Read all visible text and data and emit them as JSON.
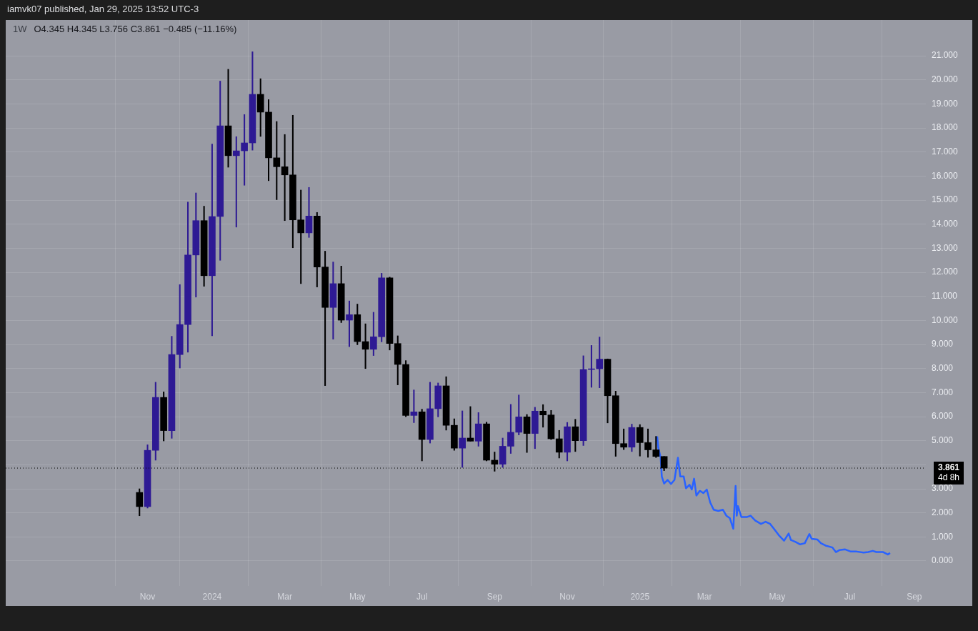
{
  "chart_data": {
    "type": "candlestick",
    "title": "1W",
    "subtitle": "O4.345 H4.345 L3.756 C3.861 −0.485 (−11.16%)",
    "annotations": [
      "iamvk07 published, Jan 29, 2025 13:52 UTC-3"
    ],
    "x": [
      "2023-10-30",
      "2023-11-06",
      "2023-11-13",
      "2023-11-20",
      "2023-11-27",
      "2023-12-04",
      "2023-12-11",
      "2023-12-18",
      "2023-12-25",
      "2024-01-01",
      "2024-01-08",
      "2024-01-15",
      "2024-01-22",
      "2024-01-29",
      "2024-02-05",
      "2024-02-12",
      "2024-02-19",
      "2024-02-26",
      "2024-03-04",
      "2024-03-11",
      "2024-03-18",
      "2024-03-25",
      "2024-04-01",
      "2024-04-08",
      "2024-04-15",
      "2024-04-22",
      "2024-04-29",
      "2024-05-06",
      "2024-05-13",
      "2024-05-20",
      "2024-05-27",
      "2024-06-03",
      "2024-06-10",
      "2024-06-17",
      "2024-06-24",
      "2024-07-01",
      "2024-07-08",
      "2024-07-15",
      "2024-07-22",
      "2024-07-29",
      "2024-08-05",
      "2024-08-12",
      "2024-08-19",
      "2024-08-26",
      "2024-09-02",
      "2024-09-09",
      "2024-09-16",
      "2024-09-23",
      "2024-09-30",
      "2024-10-07",
      "2024-10-14",
      "2024-10-21",
      "2024-10-28",
      "2024-11-04",
      "2024-11-11",
      "2024-11-18",
      "2024-11-25",
      "2024-12-02",
      "2024-12-09",
      "2024-12-16",
      "2024-12-23",
      "2024-12-30",
      "2025-01-06",
      "2025-01-13",
      "2025-01-20",
      "2025-01-27"
    ],
    "ohlc": [
      [
        2.85,
        3.0,
        1.88,
        2.26
      ],
      [
        2.26,
        4.83,
        2.2,
        4.6
      ],
      [
        4.6,
        7.43,
        4.19,
        6.8
      ],
      [
        6.8,
        7.03,
        4.99,
        5.42
      ],
      [
        5.42,
        9.34,
        5.1,
        8.58
      ],
      [
        8.58,
        11.49,
        8.02,
        9.83
      ],
      [
        9.83,
        14.92,
        8.68,
        12.72
      ],
      [
        12.72,
        15.3,
        10.97,
        14.15
      ],
      [
        14.15,
        14.75,
        11.42,
        11.86
      ],
      [
        11.86,
        17.33,
        9.36,
        14.32
      ],
      [
        14.32,
        19.95,
        12.5,
        18.09
      ],
      [
        18.09,
        20.44,
        16.37,
        16.85
      ],
      [
        16.85,
        17.64,
        13.88,
        17.05
      ],
      [
        17.05,
        18.56,
        15.62,
        17.38
      ],
      [
        17.38,
        21.17,
        17.08,
        19.4
      ],
      [
        19.4,
        20.05,
        17.65,
        18.66
      ],
      [
        18.66,
        19.18,
        15.81,
        16.76
      ],
      [
        16.76,
        18.27,
        15.02,
        16.39
      ],
      [
        16.39,
        17.73,
        14.15,
        16.05
      ],
      [
        16.05,
        18.53,
        13.02,
        14.18
      ],
      [
        14.18,
        15.42,
        11.53,
        13.64
      ],
      [
        13.64,
        15.53,
        13.45,
        14.34
      ],
      [
        14.34,
        14.49,
        11.39,
        12.22
      ],
      [
        12.22,
        12.88,
        7.29,
        10.54
      ],
      [
        10.54,
        12.43,
        9.22,
        11.53
      ],
      [
        11.53,
        12.26,
        9.91,
        10.01
      ],
      [
        10.01,
        10.81,
        8.91,
        10.24
      ],
      [
        10.24,
        10.68,
        8.99,
        9.12
      ],
      [
        9.12,
        9.86,
        8.0,
        8.8
      ],
      [
        8.8,
        10.34,
        8.54,
        9.32
      ],
      [
        9.32,
        11.96,
        9.11,
        11.77
      ],
      [
        11.77,
        11.8,
        8.77,
        9.04
      ],
      [
        9.04,
        9.36,
        7.32,
        8.17
      ],
      [
        8.17,
        8.33,
        6.0,
        6.05
      ],
      [
        6.05,
        7.11,
        5.75,
        6.2
      ],
      [
        6.2,
        6.31,
        4.16,
        5.05
      ],
      [
        5.05,
        7.43,
        4.9,
        6.33
      ],
      [
        6.33,
        7.4,
        5.99,
        7.28
      ],
      [
        7.28,
        7.66,
        5.44,
        5.64
      ],
      [
        5.64,
        5.91,
        4.6,
        4.69
      ],
      [
        4.69,
        6.24,
        3.89,
        5.11
      ],
      [
        5.11,
        6.42,
        4.98,
        4.98
      ],
      [
        4.98,
        6.17,
        4.77,
        5.7
      ],
      [
        5.7,
        5.77,
        4.16,
        4.19
      ],
      [
        4.19,
        4.53,
        3.73,
        4.02
      ],
      [
        4.02,
        5.11,
        3.89,
        4.77
      ],
      [
        4.77,
        6.51,
        4.47,
        5.35
      ],
      [
        5.35,
        6.9,
        5.24,
        5.99
      ],
      [
        5.99,
        6.09,
        4.51,
        5.3
      ],
      [
        5.3,
        6.39,
        4.67,
        6.23
      ],
      [
        6.23,
        6.5,
        5.56,
        6.07
      ],
      [
        6.07,
        6.26,
        5.05,
        5.08
      ],
      [
        5.08,
        5.43,
        4.28,
        4.52
      ],
      [
        4.52,
        5.76,
        4.16,
        5.58
      ],
      [
        5.58,
        5.89,
        4.55,
        5.0
      ],
      [
        5.0,
        8.53,
        4.8,
        7.96
      ],
      [
        7.96,
        8.96,
        7.22,
        7.99
      ],
      [
        7.99,
        9.31,
        7.2,
        8.39
      ],
      [
        8.39,
        8.4,
        5.74,
        6.87
      ],
      [
        6.87,
        7.06,
        4.35,
        4.88
      ],
      [
        4.88,
        5.49,
        4.63,
        4.73
      ],
      [
        4.73,
        5.69,
        4.55,
        5.55
      ],
      [
        5.55,
        5.67,
        4.36,
        4.92
      ],
      [
        4.92,
        5.49,
        4.31,
        4.62
      ],
      [
        4.62,
        5.18,
        4.3,
        4.345
      ],
      [
        4.345,
        4.345,
        3.756,
        3.861
      ]
    ],
    "colors": [
      "#000000",
      "#2e1a94",
      "#2e1a94",
      "#000000",
      "#2e1a94",
      "#2e1a94",
      "#2e1a94",
      "#2e1a94",
      "#000000",
      "#2e1a94",
      "#2e1a94",
      "#000000",
      "#2e1a94",
      "#2e1a94",
      "#2e1a94",
      "#000000",
      "#000000",
      "#000000",
      "#000000",
      "#000000",
      "#000000",
      "#2e1a94",
      "#000000",
      "#000000",
      "#2e1a94",
      "#000000",
      "#2e1a94",
      "#000000",
      "#000000",
      "#2e1a94",
      "#2e1a94",
      "#000000",
      "#000000",
      "#000000",
      "#2e1a94",
      "#000000",
      "#2e1a94",
      "#2e1a94",
      "#000000",
      "#000000",
      "#2e1a94",
      "#000000",
      "#2e1a94",
      "#000000",
      "#000000",
      "#2e1a94",
      "#2e1a94",
      "#2e1a94",
      "#000000",
      "#2e1a94",
      "#000000",
      "#000000",
      "#000000",
      "#2e1a94",
      "#000000",
      "#2e1a94",
      "#2e1a94",
      "#2e1a94",
      "#000000",
      "#000000",
      "#000000",
      "#2e1a94",
      "#000000",
      "#000000",
      "#000000",
      "#000000"
    ],
    "series": [
      {
        "type": "line",
        "color": "#2962ff",
        "x": [
          "2025-01-21",
          "2025-01-22",
          "2025-01-24",
          "2025-01-25",
          "2025-01-27",
          "2025-01-30",
          "2025-02-02",
          "2025-02-05",
          "2025-02-08",
          "2025-02-10",
          "2025-02-13",
          "2025-02-15",
          "2025-02-18",
          "2025-02-20",
          "2025-02-22",
          "2025-02-24",
          "2025-02-27",
          "2025-03-02",
          "2025-03-05",
          "2025-03-08",
          "2025-03-11",
          "2025-03-15",
          "2025-03-19",
          "2025-03-22",
          "2025-03-25",
          "2025-03-28",
          "2025-03-30",
          "2025-03-31",
          "2025-04-01",
          "2025-04-04",
          "2025-04-09",
          "2025-04-12",
          "2025-04-16",
          "2025-04-21",
          "2025-04-25",
          "2025-04-29",
          "2025-05-03",
          "2025-05-07",
          "2025-05-11",
          "2025-05-15",
          "2025-05-17",
          "2025-05-21",
          "2025-05-25",
          "2025-05-29",
          "2025-06-02",
          "2025-06-04",
          "2025-06-09",
          "2025-06-12",
          "2025-06-16",
          "2025-06-22",
          "2025-06-25",
          "2025-06-28",
          "2025-07-03",
          "2025-07-08",
          "2025-07-13",
          "2025-07-19",
          "2025-07-23",
          "2025-07-27",
          "2025-07-30",
          "2025-08-05",
          "2025-08-09",
          "2025-08-11"
        ],
        "values": [
          5.18,
          4.7,
          4.31,
          3.51,
          3.22,
          3.37,
          3.2,
          3.37,
          4.29,
          3.51,
          3.51,
          3.02,
          3.17,
          2.97,
          3.42,
          2.72,
          2.92,
          2.82,
          2.97,
          2.43,
          2.13,
          2.08,
          2.13,
          1.88,
          1.78,
          1.34,
          3.12,
          1.88,
          2.28,
          1.83,
          1.83,
          1.88,
          1.68,
          1.54,
          1.63,
          1.54,
          1.29,
          1.04,
          0.84,
          1.14,
          0.87,
          0.79,
          0.69,
          0.74,
          1.12,
          0.92,
          0.89,
          0.74,
          0.64,
          0.56,
          0.37,
          0.45,
          0.48,
          0.39,
          0.39,
          0.35,
          0.37,
          0.42,
          0.37,
          0.37,
          0.27,
          0.33
        ]
      }
    ],
    "xlim": [
      "2023-07-06",
      "2025-09-11"
    ],
    "xticks": [
      {
        "value": "2023-11-06",
        "label": "Nov"
      },
      {
        "value": "2024-01-01",
        "label": "2024"
      },
      {
        "value": "2024-03-04",
        "label": "Mar"
      },
      {
        "value": "2024-05-06",
        "label": "May"
      },
      {
        "value": "2024-07-01",
        "label": "Jul"
      },
      {
        "value": "2024-09-02",
        "label": "Sep"
      },
      {
        "value": "2024-11-04",
        "label": "Nov"
      },
      {
        "value": "2025-01-06",
        "label": "2025"
      },
      {
        "value": "2025-03-03",
        "label": "Mar"
      },
      {
        "value": "2025-05-05",
        "label": "May"
      },
      {
        "value": "2025-07-07",
        "label": "Jul"
      },
      {
        "value": "2025-09-01",
        "label": "Sep"
      }
    ],
    "ylim": [
      -1.04,
      22.49
    ],
    "yticks": [
      {
        "value": 0,
        "label": "0.000"
      },
      {
        "value": 1,
        "label": "1.000"
      },
      {
        "value": 2,
        "label": "2.000"
      },
      {
        "value": 3,
        "label": "3.000"
      },
      {
        "value": 4,
        "label": null
      },
      {
        "value": 5,
        "label": "5.000"
      },
      {
        "value": 6,
        "label": "6.000"
      },
      {
        "value": 7,
        "label": "7.000"
      },
      {
        "value": 8,
        "label": "8.000"
      },
      {
        "value": 9,
        "label": "9.000"
      },
      {
        "value": 10,
        "label": "10.000"
      },
      {
        "value": 11,
        "label": "11.000"
      },
      {
        "value": 12,
        "label": "12.000"
      },
      {
        "value": 13,
        "label": "13.000"
      },
      {
        "value": 14,
        "label": "14.000"
      },
      {
        "value": 15,
        "label": "15.000"
      },
      {
        "value": 16,
        "label": "16.000"
      },
      {
        "value": 17,
        "label": "17.000"
      },
      {
        "value": 18,
        "label": "18.000"
      },
      {
        "value": 19,
        "label": "19.000"
      },
      {
        "value": 20,
        "label": "20.000"
      },
      {
        "value": 21,
        "label": "21.000"
      }
    ],
    "ref_lines": [
      {
        "axis": "y",
        "value": 3.861,
        "label": "3.861\n4d 8h",
        "color": "#000000",
        "line_style": "dotted"
      }
    ],
    "grid": true
  }
}
